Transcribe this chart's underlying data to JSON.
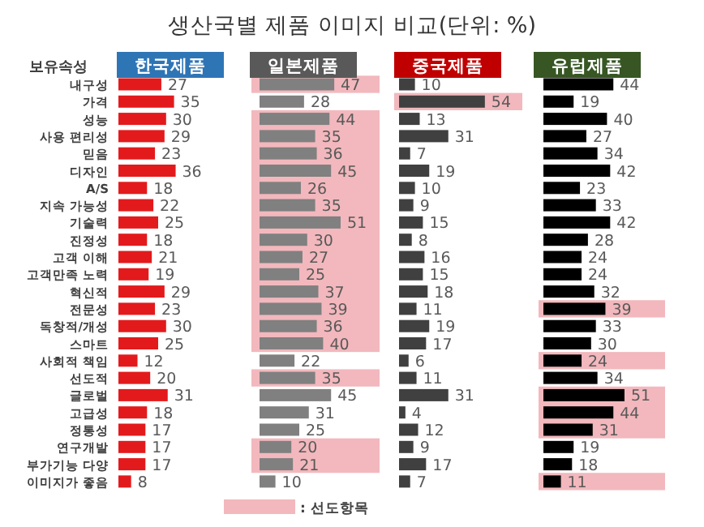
{
  "chart_data": [
    {
      "type": "bar",
      "orientation": "horizontal",
      "title": "생산국별 제품 이미지 비교(단위: %)",
      "subtitle": "한국제품",
      "ylabel": "보유속성",
      "categories": [
        "내구성",
        "가격",
        "성능",
        "사용 편리성",
        "믿음",
        "디자인",
        "A/S",
        "지속 가능성",
        "기술력",
        "진정성",
        "고객 이해",
        "고객만족 노력",
        "혁신적",
        "전문성",
        "독창적/개성",
        "스마트",
        "사회적 책임",
        "선도적",
        "글로벌",
        "고급성",
        "정통성",
        "연구개발",
        "부가기능 다양",
        "이미지가 좋음"
      ],
      "values": [
        27,
        35,
        30,
        29,
        23,
        36,
        18,
        22,
        25,
        18,
        21,
        19,
        29,
        23,
        30,
        25,
        12,
        20,
        31,
        18,
        17,
        17,
        17,
        8
      ],
      "color": "#e31a1c",
      "data_labels": true,
      "tick_labels": "y"
    },
    {
      "type": "bar",
      "orientation": "horizontal",
      "subtitle": "일본제품",
      "categories": [
        "내구성",
        "가격",
        "성능",
        "사용 편리성",
        "믿음",
        "디자인",
        "A/S",
        "지속 가능성",
        "기술력",
        "진정성",
        "고객 이해",
        "고객만족 노력",
        "혁신적",
        "전문성",
        "독창적/개성",
        "스마트",
        "사회적 책임",
        "선도적",
        "글로벌",
        "고급성",
        "정통성",
        "연구개발",
        "부가기능 다양",
        "이미지가 좋음"
      ],
      "values": [
        47,
        28,
        44,
        35,
        36,
        45,
        26,
        35,
        51,
        30,
        27,
        25,
        37,
        39,
        36,
        40,
        22,
        35,
        45,
        31,
        25,
        20,
        21,
        10
      ],
      "color": "#808080",
      "data_labels": true,
      "tick_labels": false,
      "bands": [
        {
          "axis": "y",
          "from": "내구성",
          "to": "내구성",
          "color": "#f2b8bd"
        },
        {
          "axis": "y",
          "from": "성능",
          "to": "스마트",
          "color": "#f2b8bd"
        },
        {
          "axis": "y",
          "from": "선도적",
          "to": "선도적",
          "color": "#f2b8bd"
        },
        {
          "axis": "y",
          "from": "연구개발",
          "to": "부가기능 다양",
          "color": "#f2b8bd"
        }
      ],
      "annotations": [
        ": 선도항목"
      ]
    },
    {
      "type": "bar",
      "orientation": "horizontal",
      "subtitle": "중국제품",
      "categories": [
        "내구성",
        "가격",
        "성능",
        "사용 편리성",
        "믿음",
        "디자인",
        "A/S",
        "지속 가능성",
        "기술력",
        "진정성",
        "고객 이해",
        "고객만족 노력",
        "혁신적",
        "전문성",
        "독창적/개성",
        "스마트",
        "사회적 책임",
        "선도적",
        "글로벌",
        "고급성",
        "정통성",
        "연구개발",
        "부가기능 다양",
        "이미지가 좋음"
      ],
      "values": [
        10,
        54,
        13,
        31,
        7,
        19,
        10,
        9,
        15,
        8,
        16,
        15,
        18,
        11,
        19,
        17,
        6,
        11,
        31,
        4,
        12,
        9,
        17,
        7
      ],
      "color": "#404040",
      "data_labels": true,
      "tick_labels": false,
      "bands": [
        {
          "axis": "y",
          "from": "가격",
          "to": "가격",
          "color": "#f2b8bd"
        }
      ]
    },
    {
      "type": "bar",
      "orientation": "horizontal",
      "subtitle": "유럽제품",
      "categories": [
        "내구성",
        "가격",
        "성능",
        "사용 편리성",
        "믿음",
        "디자인",
        "A/S",
        "지속 가능성",
        "기술력",
        "진정성",
        "고객 이해",
        "고객만족 노력",
        "혁신적",
        "전문성",
        "독창적/개성",
        "스마트",
        "사회적 책임",
        "선도적",
        "글로벌",
        "고급성",
        "정통성",
        "연구개발",
        "부가기능 다양",
        "이미지가 좋음"
      ],
      "values": [
        44,
        19,
        40,
        27,
        34,
        42,
        23,
        33,
        42,
        28,
        24,
        24,
        32,
        39,
        33,
        30,
        24,
        34,
        51,
        44,
        31,
        19,
        18,
        11
      ],
      "color": "#000000",
      "data_labels": true,
      "tick_labels": false,
      "bands": [
        {
          "axis": "y",
          "from": "전문성",
          "to": "전문성",
          "color": "#f2b8bd"
        },
        {
          "axis": "y",
          "from": "사회적 책임",
          "to": "사회적 책임",
          "color": "#f2b8bd"
        },
        {
          "axis": "y",
          "from": "글로벌",
          "to": "정통성",
          "color": "#f2b8bd"
        },
        {
          "axis": "y",
          "from": "이미지가 좋음",
          "to": "이미지가 좋음",
          "color": "#f2b8bd"
        }
      ]
    }
  ]
}
